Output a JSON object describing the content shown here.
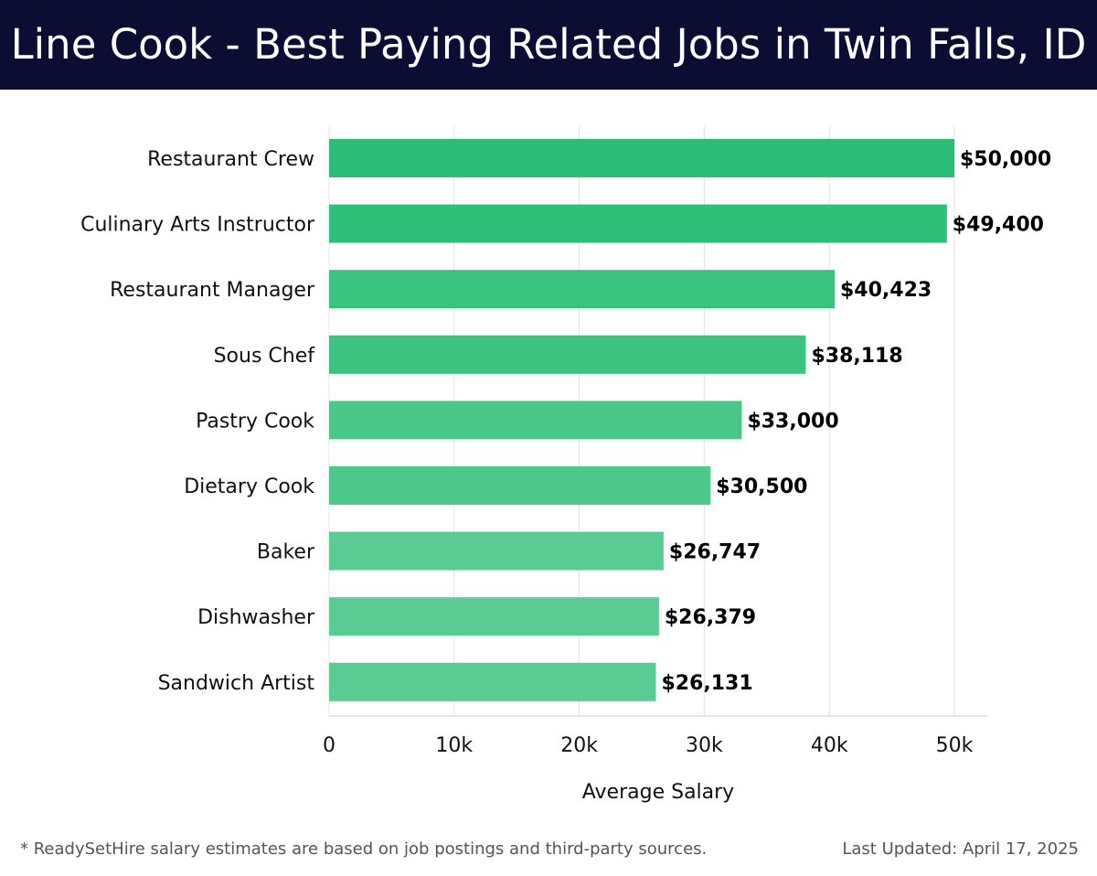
{
  "header": {
    "title": "Line Cook - Best Paying Related Jobs in Twin Falls, ID"
  },
  "chart_data": {
    "type": "bar",
    "orientation": "horizontal",
    "categories": [
      "Restaurant Crew",
      "Culinary Arts Instructor",
      "Restaurant Manager",
      "Sous Chef",
      "Pastry Cook",
      "Dietary Cook",
      "Baker",
      "Dishwasher",
      "Sandwich Artist"
    ],
    "values": [
      50000,
      49400,
      40423,
      38118,
      33000,
      30500,
      26747,
      26379,
      26131
    ],
    "data_labels": [
      "$50,000",
      "$49,400",
      "$40,423",
      "$38,118",
      "$33,000",
      "$30,500",
      "$26,747",
      "$26,379",
      "$26,131"
    ],
    "xlabel": "Average Salary",
    "ylabel": "",
    "xlim": [
      0,
      52500
    ],
    "xticks": [
      0,
      10000,
      20000,
      30000,
      40000,
      50000
    ],
    "xtick_labels": [
      "0",
      "10k",
      "20k",
      "30k",
      "40k",
      "50k"
    ],
    "grid": true,
    "bar_colors": [
      "#2bbd78",
      "#2ebf79",
      "#3ac27f",
      "#3dc380",
      "#4cc78a",
      "#4fc88b",
      "#5acc93",
      "#5acc93",
      "#5acc93"
    ]
  },
  "footer": {
    "note": "* ReadySetHire salary estimates are based on job postings and third-party sources.",
    "updated": "Last Updated: April 17, 2025"
  }
}
